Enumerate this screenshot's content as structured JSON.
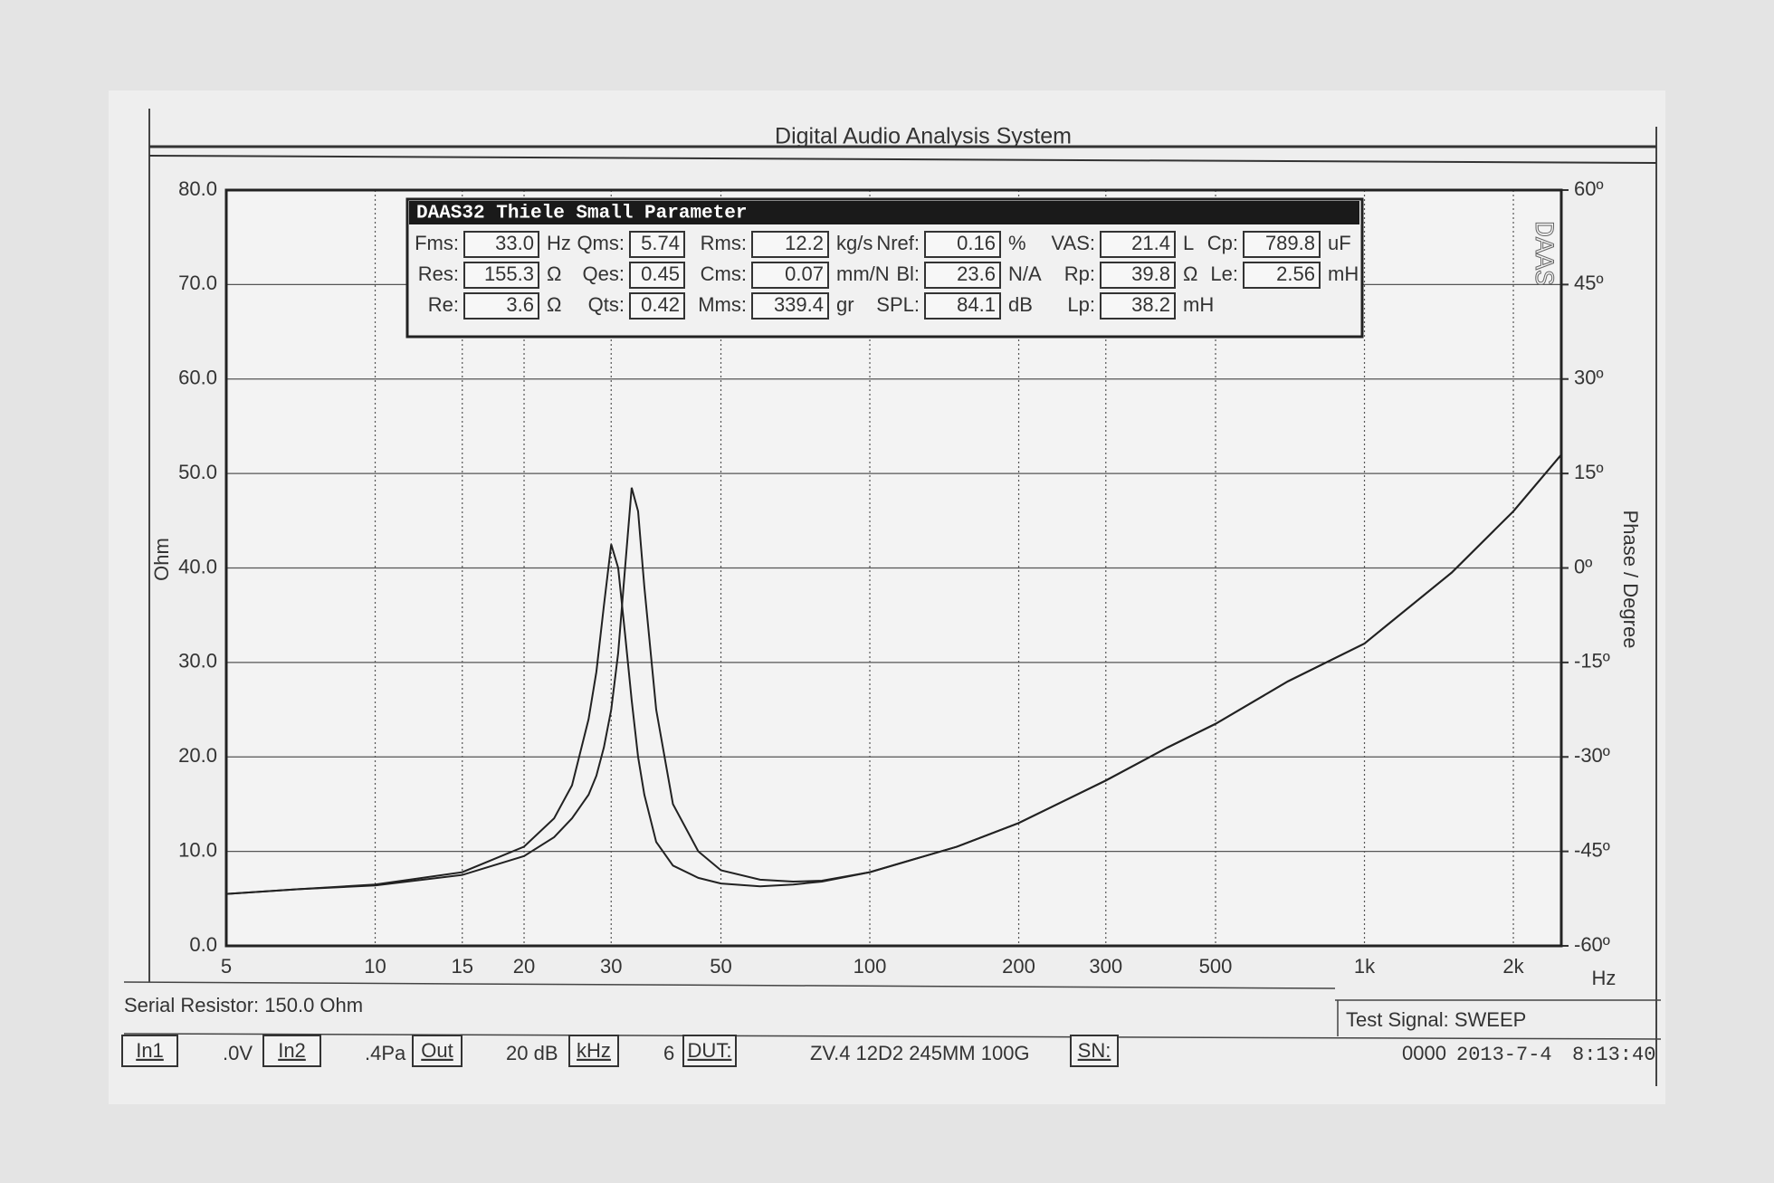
{
  "chart_data": {
    "type": "line",
    "title": "Digital Audio Analysis System",
    "y_label": "Ohm",
    "y2_label": "Phase / Degree",
    "x_unit": "Hz",
    "xscale": "log",
    "grid": true,
    "xlim": [
      5,
      2500
    ],
    "xticks": [
      5,
      10,
      15,
      20,
      30,
      50,
      100,
      200,
      300,
      500,
      {
        "value": 1000,
        "label": "1k"
      },
      {
        "value": 2000,
        "label": "2k"
      }
    ],
    "ylim": [
      0,
      80
    ],
    "yticks": [
      {
        "value": 0,
        "label": "0.0"
      },
      {
        "value": 10,
        "label": "10.0"
      },
      {
        "value": 20,
        "label": "20.0"
      },
      {
        "value": 30,
        "label": "30.0"
      },
      {
        "value": 40,
        "label": "40.0"
      },
      {
        "value": 50,
        "label": "50.0"
      },
      {
        "value": 60,
        "label": "60.0"
      },
      {
        "value": 70,
        "label": "70.0"
      },
      {
        "value": 80,
        "label": "80.0"
      }
    ],
    "y2lim": [
      -60,
      60
    ],
    "y2ticks": [
      {
        "value": -60,
        "label": "-60º"
      },
      {
        "value": -45,
        "label": "-45º"
      },
      {
        "value": -30,
        "label": "-30º"
      },
      {
        "value": -15,
        "label": "-15º"
      },
      {
        "value": 0,
        "label": "0º"
      },
      {
        "value": 15,
        "label": "15º"
      },
      {
        "value": 30,
        "label": "30º"
      },
      {
        "value": 45,
        "label": "45º"
      },
      {
        "value": 60,
        "label": "60º"
      }
    ],
    "x": [
      5,
      7,
      10,
      15,
      20,
      23,
      25,
      27,
      28,
      29,
      30,
      31,
      32,
      33,
      34,
      35,
      37,
      40,
      45,
      50,
      60,
      70,
      80,
      100,
      150,
      200,
      300,
      400,
      500,
      700,
      1000,
      1500,
      2000,
      2500
    ],
    "series": [
      {
        "color": "#222222",
        "values": [
          5.5,
          6,
          6.5,
          7.8,
          10.5,
          13.5,
          17,
          24,
          29,
          36,
          42.5,
          40,
          33,
          26,
          20,
          16,
          11,
          8.5,
          7.2,
          6.6,
          6.3,
          6.5,
          6.8,
          7.8,
          10.5,
          13,
          17.5,
          21,
          23.5,
          28,
          32,
          39.5,
          46,
          52
        ]
      },
      {
        "color": "#222222",
        "values": [
          5.5,
          6,
          6.4,
          7.5,
          9.5,
          11.5,
          13.5,
          16,
          18,
          21,
          25,
          31,
          40,
          48.5,
          46,
          38,
          25,
          15,
          10,
          8,
          7,
          6.8,
          6.9,
          7.8,
          10.5,
          13,
          17.5,
          21,
          23.5,
          28,
          32,
          39.5,
          46,
          52
        ]
      }
    ]
  },
  "parameters": {
    "title": "DAAS32 Thiele Small Parameter",
    "logo": "DAAS",
    "rows": [
      [
        {
          "label": "Fms:",
          "value": "33.0",
          "unit": "Hz"
        },
        {
          "label": "Qms:",
          "value": "5.74"
        },
        {
          "label": "Rms:",
          "value": "12.2",
          "unit": "kg/s"
        },
        {
          "label": "Nref:",
          "value": "0.16",
          "unit": "%"
        },
        {
          "label": "VAS:",
          "value": "21.4",
          "unit": "L"
        },
        {
          "label": "Cp:",
          "value": "789.8",
          "unit": "uF"
        }
      ],
      [
        {
          "label": "Res:",
          "value": "155.3",
          "unit": "Ω"
        },
        {
          "label": "Qes:",
          "value": "0.45"
        },
        {
          "label": "Cms:",
          "value": "0.07",
          "unit": "mm/N"
        },
        {
          "label": "Bl:",
          "value": "23.6",
          "unit": "N/A"
        },
        {
          "label": "Rp:",
          "value": "39.8",
          "unit": "Ω"
        },
        {
          "label": "Le:",
          "value": "2.56",
          "unit": "mH"
        }
      ],
      [
        {
          "label": "Re:",
          "value": "3.6",
          "unit": "Ω"
        },
        {
          "label": "Qts:",
          "value": "0.42"
        },
        {
          "label": "Mms:",
          "value": "339.4",
          "unit": "gr"
        },
        {
          "label": "SPL:",
          "value": "84.1",
          "unit": "dB"
        },
        {
          "label": "Lp:",
          "value": "38.2",
          "unit": "mH"
        }
      ]
    ]
  },
  "footer": {
    "serial_resistor": "Serial Resistor: 150.0 Ohm",
    "test_signal": "Test Signal: SWEEP",
    "controls": [
      "In1",
      ".0V",
      "In2",
      ".4Pa",
      "Out",
      "20 dB",
      "kHz",
      "6",
      "DUT:",
      "ZV.4 12D2 245MM 100G",
      "SN:",
      "0000",
      "2013-7-4",
      "8:13:40"
    ]
  }
}
